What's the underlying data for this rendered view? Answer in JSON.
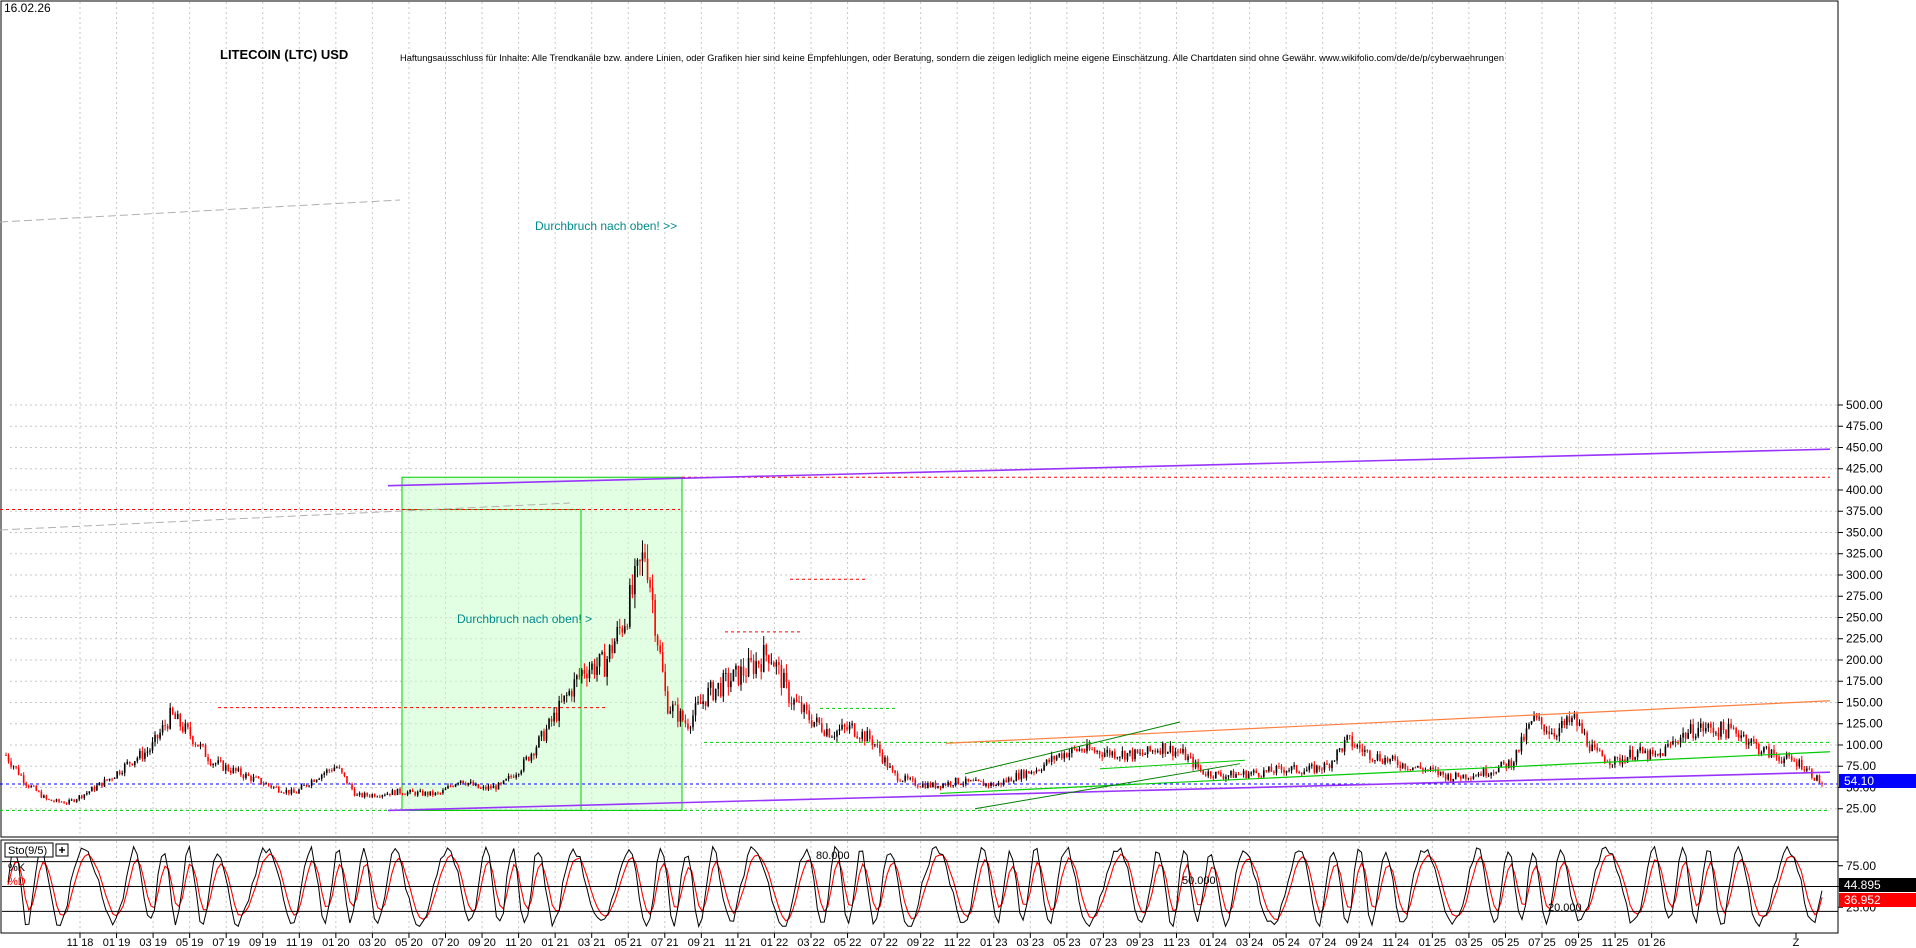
{
  "header": {
    "date": "16.02.26",
    "title": "LITECOIN (LTC) USD",
    "disclaimer": "Haftungsausschluss für Inhalte: Alle Trendkanäle bzw. andere Linien, oder Grafiken hier sind keine Empfehlungen, oder Beratung, sondern die zeigen lediglich meine eigene Einschätzung. Alle Chartdaten sind ohne Gewähr. www.wikifolio.com/de/de/p/cyberwaehrungen"
  },
  "annotations": {
    "breakout_upper": "Durchbruch nach oben! >>",
    "breakout_lower": "Durchbruch nach oben! >"
  },
  "price_axis": {
    "ticks": [
      "500.00",
      "475.00",
      "450.00",
      "425.00",
      "400.00",
      "375.00",
      "350.00",
      "325.00",
      "300.00",
      "275.00",
      "250.00",
      "225.00",
      "200.00",
      "175.00",
      "150.00",
      "125.00",
      "100.00",
      "75.00",
      "50.00",
      "25.00"
    ],
    "current_label": "54.10",
    "current_value": 54.1,
    "current_color": "#0000ff"
  },
  "indicator": {
    "name": "Sto(9/5)",
    "k_label": "%K",
    "d_label": "%D",
    "level_high": "80.000",
    "level_mid": "50.000",
    "level_low": "20.000",
    "axis_ticks": [
      "75.00",
      "50.00",
      "25.00"
    ],
    "k_value": "44.895",
    "d_value": "36.952",
    "k_color": "#000000",
    "d_color": "#ff0000"
  },
  "time_axis": {
    "labels": [
      "11 18",
      "01 19",
      "03 19",
      "05 19",
      "07 19",
      "09 19",
      "11 19",
      "01 20",
      "03 20",
      "05 20",
      "07 20",
      "09 20",
      "11 20",
      "01 21",
      "03 21",
      "05 21",
      "07 21",
      "09 21",
      "11 21",
      "01 22",
      "03 22",
      "05 22",
      "07 22",
      "09 22",
      "11 22",
      "01 23",
      "03 23",
      "05 23",
      "07 23",
      "09 23",
      "11 23",
      "01 24",
      "03 24",
      "05 24",
      "07 24",
      "09 24",
      "11 24",
      "01 25",
      "03 25",
      "05 25",
      "07 25",
      "09 25",
      "11 25",
      "01 26",
      "Z"
    ]
  },
  "colors": {
    "up_candle": "#000000",
    "down_candle": "#ff0000",
    "channel": "#9933ff",
    "support_green": "#00cc00",
    "resistance_red": "#ff0000",
    "orange_trend": "#ff7f3f",
    "highlight_box": "#ccffcc"
  },
  "chart_data": {
    "type": "candlestick",
    "title": "LITECOIN (LTC) USD",
    "xlabel": "",
    "ylabel": "",
    "ylim": [
      15,
      515
    ],
    "grid": true,
    "series": [
      {
        "name": "LITECOIN (LTC) USD",
        "x": [
          "2018-10",
          "2018-11",
          "2018-12",
          "2019-01",
          "2019-02",
          "2019-03",
          "2019-04",
          "2019-05",
          "2019-06",
          "2019-07",
          "2019-08",
          "2019-09",
          "2019-10",
          "2019-11",
          "2019-12",
          "2020-01",
          "2020-02",
          "2020-03",
          "2020-04",
          "2020-05",
          "2020-06",
          "2020-07",
          "2020-08",
          "2020-09",
          "2020-10",
          "2020-11",
          "2020-12",
          "2021-01",
          "2021-02",
          "2021-03",
          "2021-04",
          "2021-05",
          "2021-06",
          "2021-07",
          "2021-08",
          "2021-09",
          "2021-10",
          "2021-11",
          "2021-12",
          "2022-01",
          "2022-02",
          "2022-03",
          "2022-04",
          "2022-05",
          "2022-06",
          "2022-07",
          "2022-08",
          "2022-09",
          "2022-10",
          "2022-11",
          "2022-12",
          "2023-01",
          "2023-02",
          "2023-03",
          "2023-04",
          "2023-05",
          "2023-06",
          "2023-07",
          "2023-08",
          "2023-09",
          "2023-10",
          "2023-11",
          "2023-12",
          "2024-01",
          "2024-02",
          "2024-03",
          "2024-04",
          "2024-05",
          "2024-06",
          "2024-07",
          "2024-08",
          "2024-09",
          "2024-10",
          "2024-11",
          "2024-12",
          "2025-01",
          "2025-02",
          "2025-03",
          "2025-04",
          "2025-05",
          "2025-06",
          "2025-07",
          "2025-08",
          "2025-09",
          "2025-10",
          "2025-11",
          "2025-12",
          "2026-01",
          "2026-02"
        ],
        "values": [
          88,
          55,
          35,
          32,
          45,
          60,
          80,
          95,
          135,
          110,
          80,
          70,
          60,
          50,
          43,
          62,
          75,
          40,
          42,
          45,
          43,
          42,
          60,
          48,
          52,
          75,
          110,
          150,
          190,
          195,
          250,
          330,
          150,
          125,
          160,
          175,
          190,
          210,
          155,
          130,
          115,
          120,
          105,
          65,
          55,
          52,
          57,
          55,
          53,
          64,
          72,
          88,
          95,
          92,
          90,
          88,
          98,
          90,
          68,
          64,
          66,
          68,
          72,
          70,
          75,
          105,
          90,
          82,
          75,
          70,
          62,
          65,
          70,
          80,
          130,
          115,
          130,
          90,
          80,
          92,
          85,
          108,
          120,
          118,
          115,
          95,
          85,
          78,
          54.1
        ]
      }
    ],
    "levels": [
      {
        "name": "channel_upper",
        "values": [
          405,
          448
        ]
      },
      {
        "name": "channel_lower",
        "values": [
          23,
          68
        ]
      },
      {
        "name": "resistance",
        "value": 415
      },
      {
        "name": "resistance",
        "value": 377
      },
      {
        "name": "resistance",
        "value": 295
      },
      {
        "name": "resistance",
        "value": 233
      },
      {
        "name": "resistance",
        "value": 144
      },
      {
        "name": "support",
        "value": 143
      },
      {
        "name": "support",
        "value": 103
      },
      {
        "name": "support",
        "value": 23
      },
      {
        "name": "current",
        "value": 54.1
      }
    ],
    "indicator": {
      "name": "Sto(9/5)",
      "k_last": 44.895,
      "d_last": 36.952,
      "levels": [
        80,
        50,
        20
      ],
      "ylim": [
        0,
        100
      ]
    }
  }
}
